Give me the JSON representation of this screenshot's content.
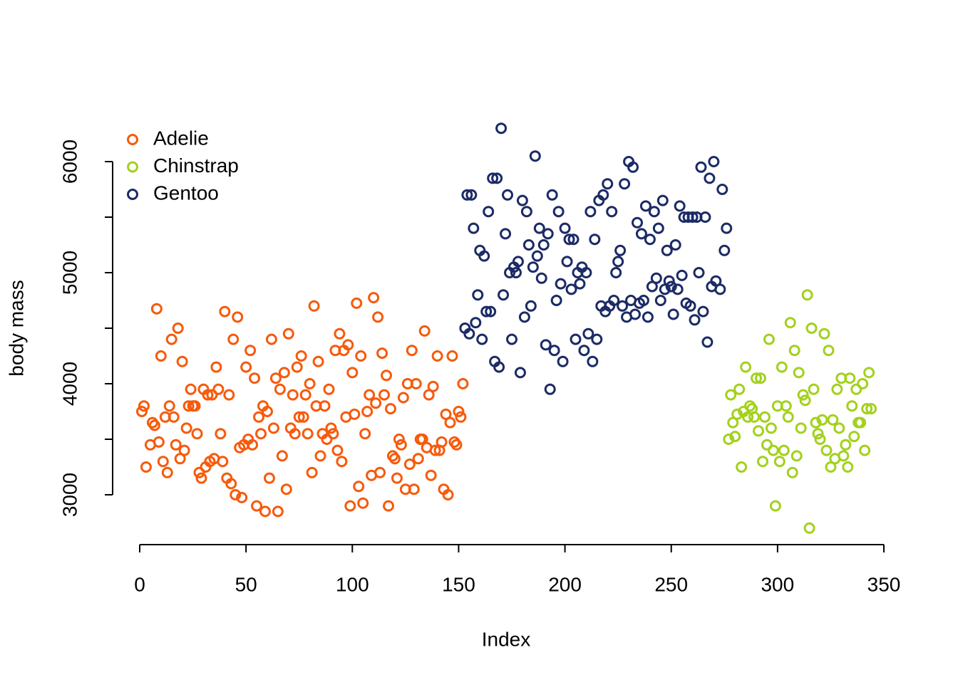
{
  "chart_data": {
    "type": "scatter",
    "xlabel": "Index",
    "ylabel": "body mass",
    "xlim": [
      0,
      350
    ],
    "xticks": [
      0,
      50,
      100,
      150,
      200,
      250,
      300,
      350
    ],
    "ylim": [
      3000,
      6000
    ],
    "yticks": [
      3000,
      4000,
      5000,
      6000
    ],
    "yminor_ticks": [
      3500,
      4500,
      5500
    ],
    "legend": "top-left",
    "series": [
      {
        "name": "Adelie",
        "color": "#f75a0c",
        "x": [
          1,
          2,
          3,
          4,
          5,
          6,
          7,
          8,
          9,
          10,
          11,
          12,
          13,
          14,
          15,
          16,
          17,
          18,
          19,
          20,
          21,
          22,
          23,
          24,
          25,
          26,
          27,
          28,
          29,
          30,
          31,
          32,
          33,
          34,
          35,
          36,
          37,
          38,
          39,
          40,
          41,
          42,
          43,
          44,
          45,
          46,
          47,
          48,
          49,
          50,
          51,
          52,
          53,
          54,
          55,
          56,
          57,
          58,
          59,
          60,
          61,
          62,
          63,
          64,
          65,
          66,
          67,
          68,
          69,
          70,
          71,
          72,
          73,
          74,
          75,
          76,
          77,
          78,
          79,
          80,
          81,
          82,
          83,
          84,
          85,
          86,
          87,
          88,
          89,
          90,
          91,
          92,
          93,
          94,
          95,
          96,
          97,
          98,
          99,
          100,
          101,
          102,
          103,
          104,
          105,
          106,
          107,
          108,
          109,
          110,
          111,
          112,
          113,
          114,
          115,
          116,
          117,
          118,
          119,
          120,
          121,
          122,
          123,
          124,
          125,
          126,
          127,
          128,
          129,
          130,
          131,
          132,
          133,
          134,
          135,
          136,
          137,
          138,
          139,
          140,
          141,
          142,
          143,
          144,
          145,
          146,
          147,
          148,
          149,
          150,
          151,
          152
        ],
        "values": [
          3750,
          3800,
          3250,
          null,
          3450,
          3650,
          3625,
          4675,
          3475,
          4250,
          3300,
          3700,
          3200,
          3800,
          4400,
          3700,
          3450,
          4500,
          3325,
          4200,
          3400,
          3600,
          3800,
          3950,
          3800,
          3800,
          3550,
          3200,
          3150,
          3950,
          3250,
          3900,
          3300,
          3900,
          3325,
          4150,
          3950,
          3550,
          3300,
          4650,
          3150,
          3900,
          3100,
          4400,
          3000,
          4600,
          3425,
          2975,
          3450,
          4150,
          3500,
          4300,
          3450,
          4050,
          2900,
          3700,
          3550,
          3800,
          2850,
          3750,
          3150,
          4400,
          3600,
          4050,
          2850,
          3950,
          3350,
          4100,
          3050,
          4450,
          3600,
          3900,
          3550,
          4150,
          3700,
          4250,
          3700,
          3900,
          3550,
          4000,
          3200,
          4700,
          3800,
          4200,
          3350,
          3550,
          3800,
          3500,
          3950,
          3600,
          3550,
          4300,
          3400,
          4450,
          3300,
          4300,
          3700,
          4350,
          2900,
          4100,
          3725,
          4725,
          3075,
          4250,
          2925,
          3550,
          3750,
          3900,
          3175,
          4775,
          3825,
          4600,
          3200,
          4275,
          3900,
          4075,
          2900,
          3775,
          3350,
          3325,
          3150,
          3500,
          3450,
          3875,
          3050,
          4000,
          3275,
          4300,
          3050,
          4000,
          3325,
          3500,
          3500,
          4475,
          3425,
          3900,
          3175,
          3975,
          3400,
          4250,
          3400,
          3475,
          3050,
          3725,
          3000,
          3650,
          4250,
          3475,
          3450,
          3750,
          3700,
          4000
        ]
      },
      {
        "name": "Chinstrap",
        "color": "#a3d11d",
        "x": [
          277,
          278,
          279,
          280,
          281,
          282,
          283,
          284,
          285,
          286,
          287,
          288,
          289,
          290,
          291,
          292,
          293,
          294,
          295,
          296,
          297,
          298,
          299,
          300,
          301,
          302,
          303,
          304,
          305,
          306,
          307,
          308,
          309,
          310,
          311,
          312,
          313,
          314,
          315,
          316,
          317,
          318,
          319,
          320,
          321,
          322,
          323,
          324,
          325,
          326,
          327,
          328,
          329,
          330,
          331,
          332,
          333,
          334,
          335,
          336,
          337,
          338,
          339,
          340,
          341,
          342,
          343,
          344
        ],
        "values": [
          3500,
          3900,
          3650,
          3525,
          3725,
          3950,
          3250,
          3750,
          4150,
          3700,
          3800,
          3775,
          3700,
          4050,
          3575,
          4050,
          3300,
          3700,
          3450,
          4400,
          3600,
          3400,
          2900,
          3800,
          3300,
          4150,
          3400,
          3800,
          3700,
          4550,
          3200,
          4300,
          3350,
          4100,
          3600,
          3900,
          3850,
          4800,
          2700,
          4500,
          3950,
          3650,
          3550,
          3500,
          3675,
          4450,
          3400,
          4300,
          3250,
          3675,
          3325,
          3950,
          3600,
          4050,
          3350,
          3450,
          3250,
          4050,
          3800,
          3525,
          3950,
          3650,
          3650,
          4000,
          3400,
          3775,
          4100,
          3775
        ]
      },
      {
        "name": "Gentoo",
        "color": "#1c2b66",
        "x": [
          153,
          154,
          155,
          156,
          157,
          158,
          159,
          160,
          161,
          162,
          163,
          164,
          165,
          166,
          167,
          168,
          169,
          170,
          171,
          172,
          173,
          174,
          175,
          176,
          177,
          178,
          179,
          180,
          181,
          182,
          183,
          184,
          185,
          186,
          187,
          188,
          189,
          190,
          191,
          192,
          193,
          194,
          195,
          196,
          197,
          198,
          199,
          200,
          201,
          202,
          203,
          204,
          205,
          206,
          207,
          208,
          209,
          210,
          211,
          212,
          213,
          214,
          215,
          216,
          217,
          218,
          219,
          220,
          221,
          222,
          223,
          224,
          225,
          226,
          227,
          228,
          229,
          230,
          231,
          232,
          233,
          234,
          235,
          236,
          237,
          238,
          239,
          240,
          241,
          242,
          243,
          244,
          245,
          246,
          247,
          248,
          249,
          250,
          251,
          252,
          253,
          254,
          255,
          256,
          257,
          258,
          259,
          260,
          261,
          262,
          263,
          264,
          265,
          266,
          267,
          268,
          269,
          270,
          271,
          272,
          273,
          274,
          275,
          276
        ],
        "values": [
          4500,
          5700,
          4450,
          5700,
          5400,
          4550,
          4800,
          5200,
          4400,
          5150,
          4650,
          5550,
          4650,
          5850,
          4200,
          5850,
          4150,
          6300,
          4800,
          5350,
          5700,
          5000,
          4400,
          5050,
          5000,
          5100,
          4100,
          5650,
          4600,
          5550,
          5250,
          4700,
          5050,
          6050,
          5150,
          5400,
          4950,
          5250,
          4350,
          5350,
          3950,
          5700,
          4300,
          4750,
          5550,
          4900,
          4200,
          5400,
          5100,
          5300,
          4850,
          5300,
          4400,
          5000,
          4900,
          5050,
          4300,
          5000,
          4450,
          5550,
          4200,
          5300,
          4400,
          5650,
          4700,
          5700,
          4650,
          5800,
          4700,
          5550,
          4750,
          5000,
          5100,
          5200,
          4700,
          5800,
          4600,
          6000,
          4750,
          5950,
          4625,
          5450,
          4725,
          5350,
          4750,
          5600,
          4600,
          5300,
          4875,
          5550,
          4950,
          5400,
          4750,
          5650,
          4850,
          5200,
          4925,
          4875,
          4625,
          5250,
          4850,
          5600,
          4975,
          5500,
          4725,
          5500,
          4700,
          5500,
          4575,
          5500,
          5000,
          5950,
          4650,
          5500,
          4375,
          5850,
          4875,
          6000,
          4925,
          null,
          4850,
          5750,
          5200,
          5400
        ]
      }
    ]
  }
}
